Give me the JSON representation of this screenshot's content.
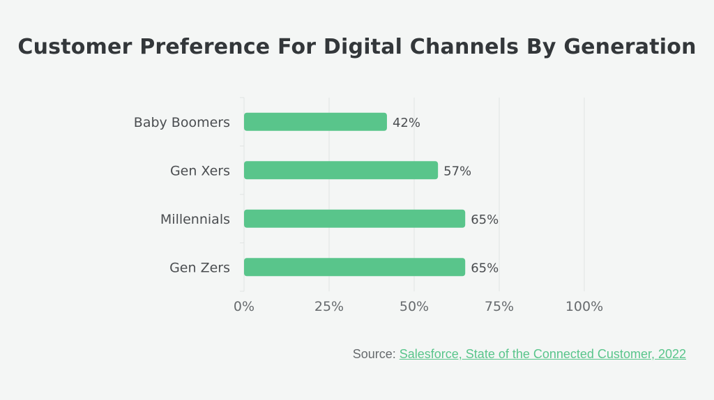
{
  "chart_data": {
    "type": "bar",
    "orientation": "horizontal",
    "title": "Customer Preference For Digital Channels By Generation",
    "categories": [
      "Baby Boomers",
      "Gen Xers",
      "Millennials",
      "Gen Zers"
    ],
    "values": [
      42,
      57,
      65,
      65
    ],
    "data_labels": [
      "42%",
      "57%",
      "65%",
      "65%"
    ],
    "xlim": [
      0,
      100
    ],
    "x_ticks": [
      0,
      25,
      50,
      75,
      100
    ],
    "x_tick_labels": [
      "0%",
      "25%",
      "50%",
      "75%",
      "100%"
    ],
    "grid": "vertical",
    "legend": "none",
    "colors": {
      "bar": "#59c58b",
      "grid": "#e1e4e3",
      "axis_text": "#666a6d",
      "label_text": "#4a4d50"
    }
  },
  "source": {
    "prefix": "Source: ",
    "link_text": "Salesforce, State of the Connected Customer, 2022"
  }
}
